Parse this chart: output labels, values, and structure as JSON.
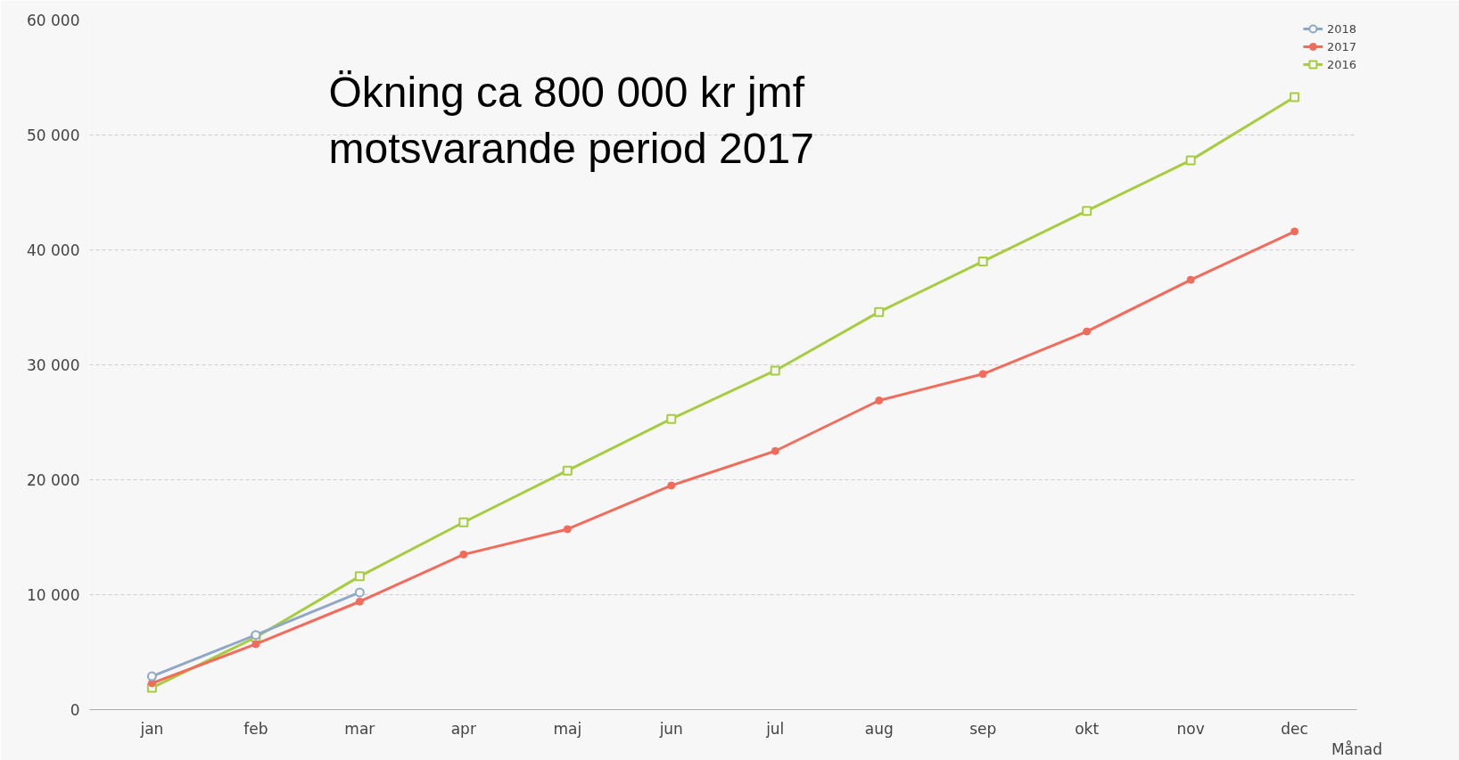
{
  "chart_data": {
    "type": "line",
    "xlabel": "Månad",
    "categories": [
      "jan",
      "feb",
      "mar",
      "apr",
      "maj",
      "jun",
      "jul",
      "aug",
      "sep",
      "okt",
      "nov",
      "dec"
    ],
    "annotations": [
      "Ökning ca 800 000 kr jmf\nmotsvarande period 2017"
    ],
    "ylim": [
      0,
      60000
    ],
    "yticks": [
      {
        "value": 0,
        "label": "0"
      },
      {
        "value": 10000,
        "label": "10 000"
      },
      {
        "value": 20000,
        "label": "20 000"
      },
      {
        "value": 30000,
        "label": "30 000"
      },
      {
        "value": 40000,
        "label": "40 000"
      },
      {
        "value": 50000,
        "label": "50 000"
      },
      {
        "value": 60000,
        "label": "60 000"
      }
    ],
    "grid": "y",
    "legend": "top right",
    "series": [
      {
        "name": "2018",
        "color": "#8fa8c8",
        "marker": "circle",
        "values": [
          2900,
          6500,
          10200,
          null,
          null,
          null,
          null,
          null,
          null,
          null,
          null,
          null
        ]
      },
      {
        "name": "2017",
        "color": "#f26b5b",
        "marker": "dot",
        "values": [
          2300,
          5700,
          9400,
          13500,
          15700,
          19500,
          22500,
          26900,
          29200,
          32900,
          37400,
          41600
        ]
      },
      {
        "name": "2016",
        "color": "#a6cc3f",
        "marker": "square",
        "values": [
          1900,
          6300,
          11600,
          16300,
          20800,
          25300,
          29500,
          34600,
          39000,
          43400,
          47800,
          53300
        ]
      }
    ]
  }
}
